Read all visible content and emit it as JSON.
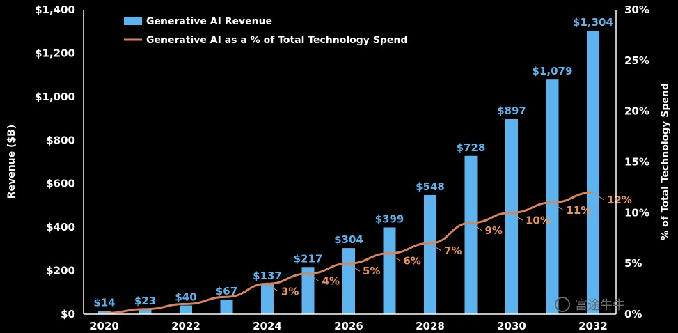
{
  "chart_data": {
    "type": "bar",
    "categories": [
      "2020",
      "2021",
      "2022",
      "2023",
      "2024",
      "2025",
      "2026",
      "2027",
      "2028",
      "2029",
      "2030",
      "2031",
      "2032"
    ],
    "x_tick_labels": [
      "2020",
      "2022",
      "2024",
      "2026",
      "2028",
      "2030",
      "2032"
    ],
    "series": [
      {
        "name": "Generative AI Revenue",
        "type": "bar",
        "axis": "left",
        "values": [
          14,
          23,
          40,
          67,
          137,
          217,
          304,
          399,
          548,
          728,
          897,
          1079,
          1304
        ],
        "labels": [
          "$14",
          "$23",
          "$40",
          "$67",
          "$137",
          "$217",
          "$304",
          "$399",
          "$548",
          "$728",
          "$897",
          "$1,079",
          "$1,304"
        ]
      },
      {
        "name": "Generative AI as a % of Total Technology Spend",
        "type": "line",
        "axis": "right",
        "values": [
          0.1,
          0.5,
          1.0,
          1.7,
          3,
          4,
          5,
          6,
          7,
          9,
          10,
          11,
          12
        ],
        "labels": [
          "",
          "",
          "",
          "",
          "3%",
          "4%",
          "5%",
          "6%",
          "7%",
          "9%",
          "10%",
          "11%",
          "12%"
        ]
      }
    ],
    "ylabel": "Revenue ($B)",
    "y2label": "% of Total Technology Spend",
    "ylim": [
      0,
      1400
    ],
    "y2lim": [
      0,
      30
    ],
    "y_ticks": [
      "$0",
      "$200",
      "$400",
      "$600",
      "$800",
      "$1,000",
      "$1,200",
      "$1,400"
    ],
    "y2_ticks": [
      "0%",
      "5%",
      "10%",
      "15%",
      "20%",
      "25%",
      "30%"
    ],
    "legend_position": "top-left",
    "grid": false,
    "colors": {
      "bar": "#5cb3ee",
      "line": "#d7845a",
      "background": "#000000"
    }
  },
  "watermark": {
    "text": "富途牛牛",
    "icon": "futu-logo-icon"
  }
}
